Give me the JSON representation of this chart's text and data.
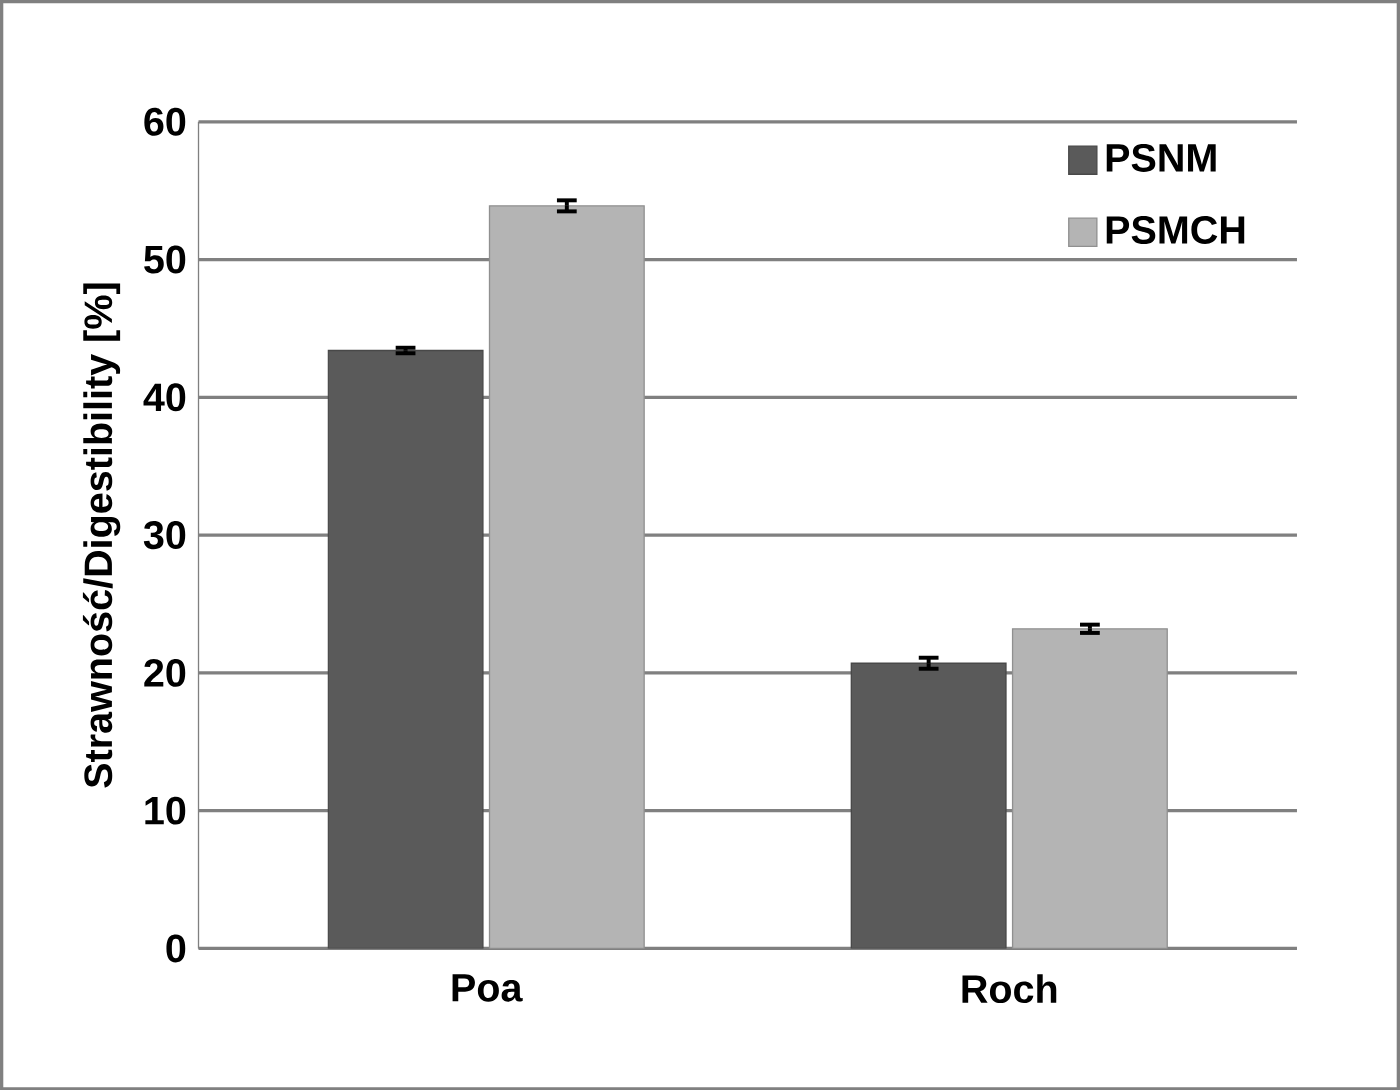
{
  "chart_data": {
    "type": "bar",
    "ylabel": "Strawność/Digestibility  [%]",
    "categories": [
      "Poa",
      "Roch"
    ],
    "series": [
      {
        "name": "PSNM",
        "color": "#5a5a5a",
        "values": [
          43.4,
          20.7
        ],
        "errors": [
          0.2,
          0.4
        ]
      },
      {
        "name": "PSMCH",
        "color": "#b4b4b4",
        "values": [
          53.9,
          23.2
        ],
        "errors": [
          0.4,
          0.3
        ]
      }
    ],
    "ylim": [
      0,
      60
    ],
    "yticks": [
      0,
      10,
      20,
      30,
      40,
      50,
      60
    ],
    "grid": "y",
    "legend": "top right"
  }
}
